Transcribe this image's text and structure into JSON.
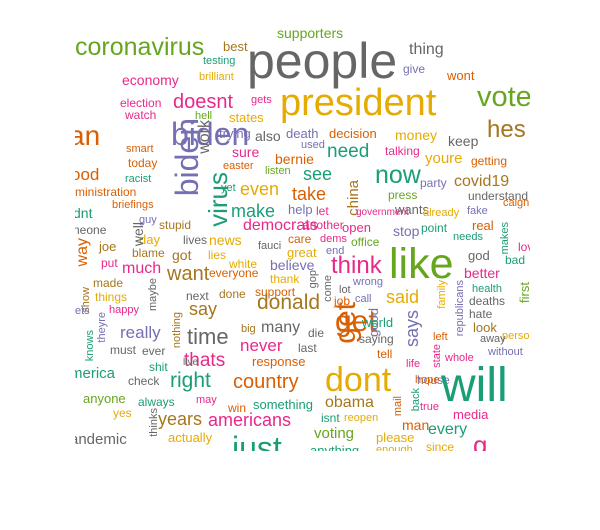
{
  "palette": {
    "teal": "#1b9e77",
    "orange": "#d95f02",
    "purple": "#7570b3",
    "pink": "#e7298a",
    "green": "#66a61e",
    "gold": "#e6ab02",
    "brown": "#a6761d",
    "gray": "#666666"
  },
  "words": [
    "people",
    "president",
    "will",
    "like",
    "dont",
    "just",
    "vote",
    "get",
    "biden",
    "hes",
    "now",
    "think",
    "donald",
    "virus",
    "coronavirus",
    "said",
    "time",
    "right",
    "country",
    "americans",
    "make",
    "years",
    "says",
    "thats",
    "see",
    "want",
    "say",
    "even",
    "really",
    "doesnt",
    "never",
    "need",
    "covid19",
    "every",
    "obama",
    "back",
    "many",
    "supporters",
    "thing",
    "best",
    "testing",
    "brilliant",
    "wont",
    "economy",
    "gets",
    "election",
    "watch",
    "hell",
    "states",
    "trying",
    "also",
    "death",
    "decision",
    "money",
    "keep",
    "smart",
    "today",
    "sure",
    "bernie",
    "used",
    "talking",
    "youre",
    "getting",
    "easter",
    "listen",
    "democrats",
    "take",
    "china",
    "press",
    "party",
    "racist",
    "yet",
    "help",
    "let",
    "wants",
    "government",
    "already",
    "understand",
    "fake",
    "caign",
    "ministration",
    "briefings",
    "guy",
    "stupid",
    "lives",
    "another",
    "dems",
    "office",
    "stop",
    "point",
    "needs",
    "real",
    "god",
    "makes",
    "love",
    "bad",
    "day",
    "news",
    "fauci",
    "care",
    "end",
    "great",
    "believe",
    "joe",
    "put",
    "blame",
    "got",
    "lies",
    "white",
    "thank",
    "much",
    "everyone",
    "gop",
    "come",
    "lot",
    "wrong",
    "better",
    "made",
    "things",
    "show",
    "maybe",
    "next",
    "done",
    "support",
    "job",
    "call",
    "family",
    "hate",
    "deaths",
    "first",
    "republicans",
    "health",
    "away",
    "happy",
    "theyre",
    "die",
    "world",
    "look",
    "person",
    "knows",
    "must",
    "ever",
    "big",
    "last",
    "saying",
    "left",
    "without",
    "whole",
    "nothing",
    "response",
    "tell",
    "shit",
    "live",
    "check",
    "state",
    "life",
    "house",
    "hope",
    "anyone",
    "always",
    "may",
    "win",
    "something",
    "isnt",
    "mail",
    "true",
    "media",
    "yes",
    "thinks",
    "voting",
    "reopen",
    "man",
    "actually",
    "please",
    "enough",
    "since",
    "anything",
    "ood",
    "dnt",
    "neone",
    "way",
    "ets",
    "merica",
    "andemic",
    "an",
    "g"
  ]
}
